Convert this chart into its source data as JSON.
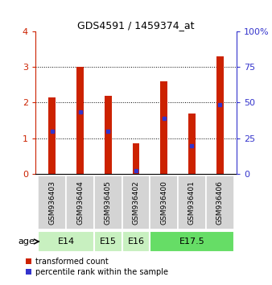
{
  "title": "GDS4591 / 1459374_at",
  "samples": [
    "GSM936403",
    "GSM936404",
    "GSM936405",
    "GSM936402",
    "GSM936400",
    "GSM936401",
    "GSM936406"
  ],
  "red_values": [
    2.15,
    3.0,
    2.2,
    0.85,
    2.6,
    1.7,
    3.3
  ],
  "blue_values": [
    1.2,
    1.75,
    1.2,
    0.1,
    1.55,
    0.8,
    1.95
  ],
  "group_labels": [
    "E14",
    "E15",
    "E16",
    "E17.5"
  ],
  "group_indices": [
    [
      0,
      1
    ],
    [
      2
    ],
    [
      3
    ],
    [
      4,
      5,
      6
    ]
  ],
  "group_colors": [
    "#c8f0c0",
    "#c8f0c0",
    "#c8f0c0",
    "#66dd66"
  ],
  "ylim_left": [
    0,
    4
  ],
  "ylim_right": [
    0,
    100
  ],
  "yticks_left": [
    0,
    1,
    2,
    3,
    4
  ],
  "yticks_right": [
    0,
    25,
    50,
    75,
    100
  ],
  "bar_color": "#cc2200",
  "marker_color": "#3333cc",
  "bar_width": 0.25,
  "age_label": "age",
  "legend_entries": [
    "transformed count",
    "percentile rank within the sample"
  ]
}
